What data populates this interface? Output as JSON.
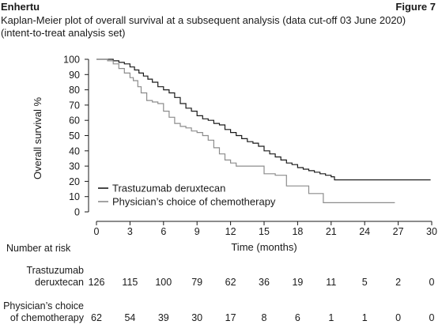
{
  "header": {
    "brand": "Enhertu",
    "figure": "Figure 7"
  },
  "chart_data": {
    "type": "line",
    "title": "Kaplan-Meier plot of overall survival at a subsequent analysis (data cut-off 03 June 2020) (intent-to-treat analysis set)",
    "xlabel": "Time (months)",
    "ylabel": "Overall survival %",
    "xlim": [
      0,
      30
    ],
    "ylim": [
      0,
      100
    ],
    "xticks": [
      "0",
      "3",
      "6",
      "9",
      "12",
      "15",
      "18",
      "21",
      "24",
      "27",
      "30"
    ],
    "yticks": [
      "0",
      "10",
      "20",
      "30",
      "40",
      "50",
      "60",
      "70",
      "80",
      "90",
      "100"
    ],
    "legend_position": "lower-left",
    "series": [
      {
        "name": "Trastuzumab deruxtecan",
        "color": "#1a1a1a",
        "x": [
          0,
          0.8,
          1.5,
          2.0,
          2.5,
          3.0,
          3.4,
          3.8,
          4.2,
          4.6,
          5.0,
          5.5,
          6.0,
          6.5,
          7.0,
          7.5,
          8.0,
          8.5,
          9.0,
          9.5,
          10.0,
          10.5,
          11.0,
          11.5,
          12.0,
          12.5,
          13.0,
          13.5,
          14.0,
          14.5,
          15.0,
          15.5,
          16.0,
          16.5,
          17.0,
          17.5,
          18.0,
          18.5,
          19.0,
          19.5,
          20.0,
          20.5,
          21.0,
          21.3,
          22.0,
          24.0,
          26.0,
          28.0,
          29.9
        ],
        "y": [
          100,
          100,
          99,
          98,
          97,
          95,
          93,
          91,
          89,
          87,
          85,
          82,
          80,
          78,
          75,
          71,
          68,
          66,
          63,
          61,
          60,
          58,
          57,
          54,
          52,
          50,
          48,
          46,
          45,
          43,
          40,
          38,
          36,
          34,
          32,
          31,
          29,
          28,
          27,
          26,
          25,
          24,
          23,
          21,
          21,
          21,
          21,
          21,
          21
        ]
      },
      {
        "name": "Physician’s choice of chemotherapy",
        "color": "#8c8c8c",
        "x": [
          0,
          1.0,
          1.5,
          2.0,
          2.5,
          3.0,
          3.3,
          3.7,
          4.0,
          4.5,
          5.0,
          5.5,
          6.0,
          6.5,
          7.0,
          7.5,
          8.0,
          8.5,
          9.0,
          9.5,
          10.0,
          10.5,
          11.0,
          11.5,
          12.0,
          12.5,
          13.0,
          14.0,
          15.0,
          15.5,
          16.0,
          16.5,
          17.0,
          18.0,
          18.6,
          19.0,
          19.5,
          20.3,
          21.0,
          24.0,
          26.7
        ],
        "y": [
          100,
          99,
          97,
          94,
          91,
          88,
          86,
          82,
          78,
          73,
          72,
          71,
          66,
          62,
          58,
          56,
          55,
          53,
          52,
          50,
          47,
          42,
          38,
          34,
          32,
          30,
          30,
          30,
          25,
          25,
          24,
          24,
          17,
          17,
          17,
          12,
          12,
          6,
          6,
          6,
          6
        ]
      }
    ],
    "risk_table": {
      "title": "Number at risk",
      "times": [
        0,
        3,
        6,
        9,
        12,
        15,
        18,
        21,
        24,
        27,
        30
      ],
      "rows": [
        {
          "label_line1": "Trastuzumab",
          "label_line2": "deruxtecan",
          "values": [
            "126",
            "115",
            "100",
            "79",
            "62",
            "36",
            "19",
            "11",
            "5",
            "2",
            "0"
          ]
        },
        {
          "label_line1": "Physician’s choice",
          "label_line2": "of chemotherapy",
          "values": [
            "62",
            "54",
            "39",
            "30",
            "17",
            "8",
            "6",
            "1",
            "1",
            "0",
            "0"
          ]
        }
      ]
    }
  }
}
